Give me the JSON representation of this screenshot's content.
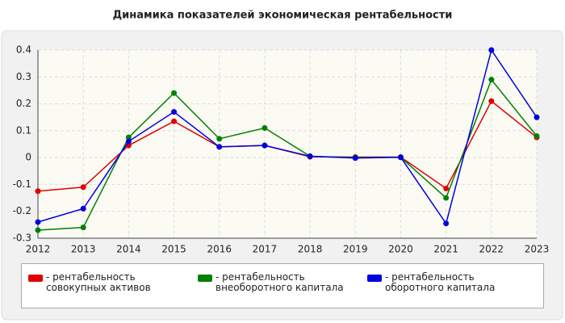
{
  "chart_data": {
    "type": "line",
    "title": "Динамика показателей экономическая рентабельности",
    "x": [
      2012,
      2013,
      2014,
      2015,
      2016,
      2017,
      2018,
      2019,
      2020,
      2021,
      2022,
      2023
    ],
    "xlim": [
      2012,
      2023
    ],
    "xticks": [
      2012,
      2013,
      2014,
      2015,
      2016,
      2017,
      2018,
      2019,
      2020,
      2021,
      2022,
      2023
    ],
    "ylim": [
      -0.3,
      0.4
    ],
    "yticks": [
      -0.3,
      -0.2,
      -0.1,
      0,
      0.1,
      0.2,
      0.3,
      0.4
    ],
    "grid": true,
    "legend": "bottom",
    "series": [
      {
        "name": "- рентабельность совокупных активов",
        "color": "#e00000",
        "values": [
          -0.125,
          -0.11,
          0.045,
          0.135,
          0.04,
          0.045,
          0.003,
          0.002,
          0.002,
          -0.115,
          0.21,
          0.075
        ]
      },
      {
        "name": "- рентабельность внеоборотного капитала",
        "color": "#008000",
        "values": [
          -0.27,
          -0.26,
          0.075,
          0.24,
          0.07,
          0.11,
          0.005,
          0.0,
          0.001,
          -0.15,
          0.29,
          0.08
        ]
      },
      {
        "name": "- рентабельность оборотного капитала",
        "color": "#0000e0",
        "values": [
          -0.24,
          -0.19,
          0.06,
          0.17,
          0.04,
          0.045,
          0.005,
          -0.002,
          0.001,
          -0.245,
          0.4,
          0.15
        ]
      }
    ]
  }
}
